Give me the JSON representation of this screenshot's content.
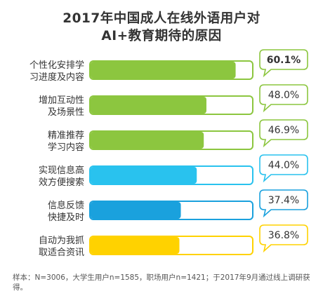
{
  "title_line1": "2017年中国成人在线外语用户对",
  "title_line2": "AI+教育期待的原因",
  "note": "样本：N=3006，大学生用户n=1585，职场用户n=1421；于2017年9月通过线上调研获得。",
  "chart_data": {
    "type": "bar",
    "orientation": "horizontal",
    "title": "2017年中国成人在线外语用户对AI+教育期待的原因",
    "categories": [
      [
        "个性化安排学",
        "习进度及内容"
      ],
      [
        "增加互动性",
        "及场景性"
      ],
      [
        "精准推荐",
        "学习内容"
      ],
      [
        "实现信息高",
        "效方便搜索"
      ],
      [
        "信息反馈",
        "快捷及时"
      ],
      [
        "自动为我抓",
        "取适合资讯"
      ]
    ],
    "values": [
      60.1,
      48.0,
      46.9,
      44.0,
      37.4,
      36.8
    ],
    "value_labels": [
      "60.1%",
      "48.0%",
      "46.9%",
      "44.0%",
      "37.4%",
      "36.8%"
    ],
    "colors": [
      "#8cc63f",
      "#8cc63f",
      "#8cc63f",
      "#29c2ee",
      "#1aa1dd",
      "#ffd200"
    ],
    "grid": false,
    "legend": "none"
  }
}
